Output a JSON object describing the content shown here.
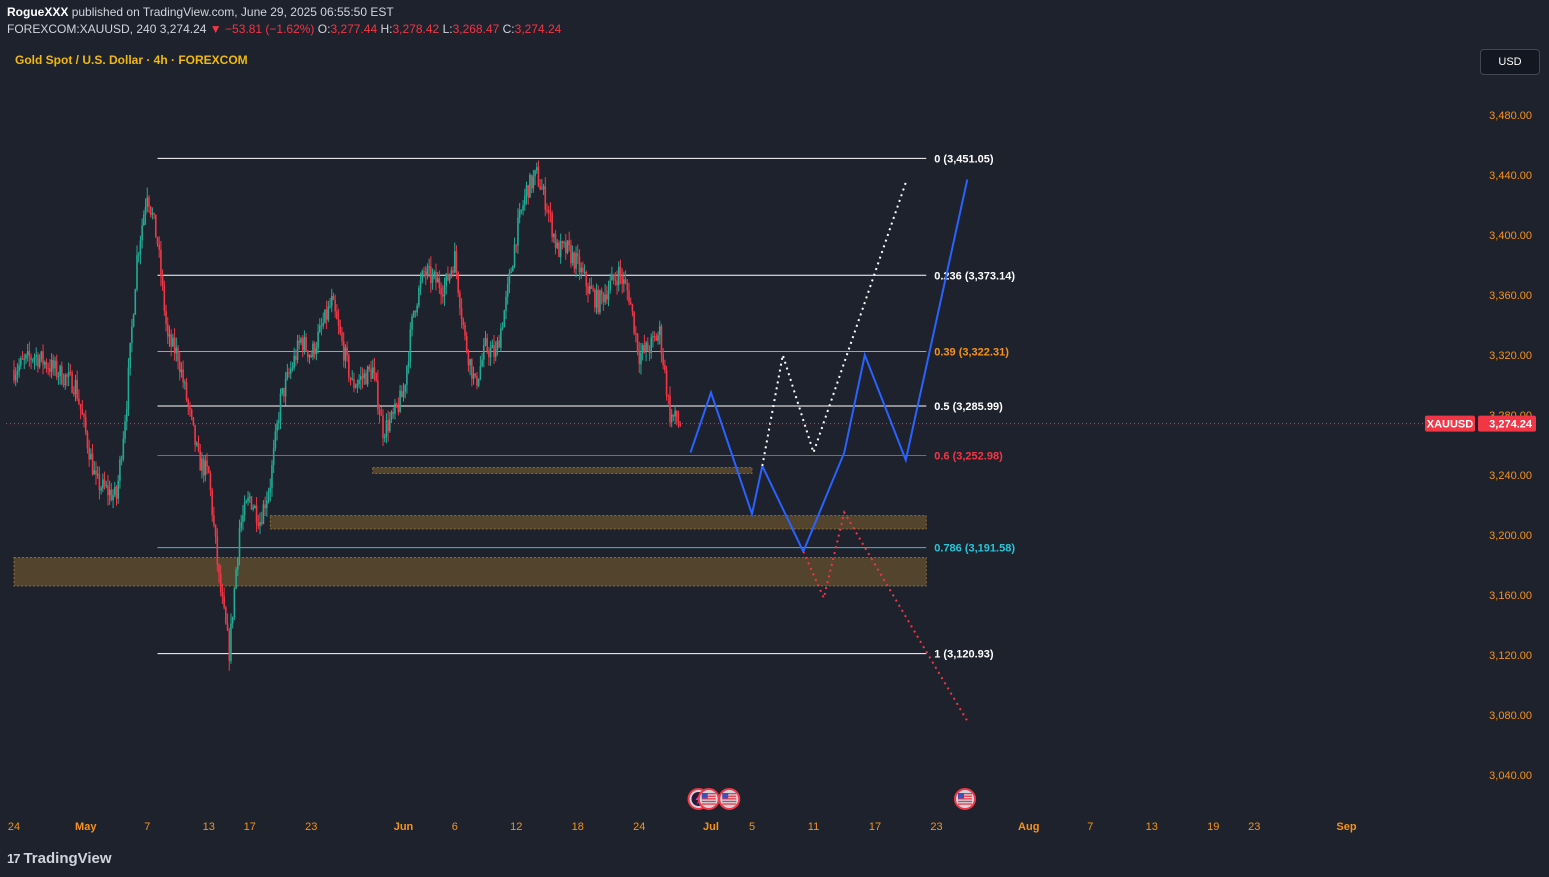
{
  "header": {
    "publisher": "RogueXXX",
    "published_text": "published on TradingView.com, June 29, 2025 06:55:50 EST",
    "symbol": "FOREXCOM:XAUUSD, 240",
    "last": "3,274.24",
    "change_arrow": "▼",
    "change": "−53.81 (−1.62%)",
    "o_label": "O:",
    "o": "3,277.44",
    "h_label": "H:",
    "h": "3,278.42",
    "l_label": "L:",
    "l": "3,268.47",
    "c_label": "C:",
    "c": "3,274.24"
  },
  "symbol_title": "Gold Spot / U.S. Dollar · 4h · FOREXCOM",
  "currency_button": "USD",
  "footer": {
    "logo_mark": "17",
    "logo_text": "TradingView"
  },
  "colors": {
    "up": "#22ab94",
    "down": "#f23645",
    "background": "#1e222d",
    "orange": "#f7931a",
    "blue_path": "#2962ff",
    "cyan_fib": "#26c6da",
    "zone_fill": "#5c4a2e",
    "text": "#d1d4dc"
  },
  "chart_data": {
    "type": "candlestick",
    "timeframe": "4h",
    "ylim": [
      3010,
      3510
    ],
    "y_ticks": [
      "3,480.00",
      "3,440.00",
      "3,400.00",
      "3,360.00",
      "3,320.00",
      "3,280.00",
      "3,240.00",
      "3,200.00",
      "3,160.00",
      "3,120.00",
      "3,080.00",
      "3,040.00"
    ],
    "y_tick_values": [
      3480,
      3440,
      3400,
      3360,
      3320,
      3280,
      3240,
      3200,
      3160,
      3120,
      3080,
      3040
    ],
    "x_ticks": [
      "24",
      "May",
      "7",
      "13",
      "17",
      "23",
      "Jun",
      "6",
      "12",
      "18",
      "24",
      "Jul",
      "5",
      "11",
      "17",
      "23",
      "Aug",
      "7",
      "13",
      "19",
      "23",
      "Sep"
    ],
    "x_tick_dates": [
      "2025-04-24",
      "2025-05-01",
      "2025-05-07",
      "2025-05-13",
      "2025-05-17",
      "2025-05-23",
      "2025-06-01",
      "2025-06-06",
      "2025-06-12",
      "2025-06-18",
      "2025-06-24",
      "2025-07-01",
      "2025-07-05",
      "2025-07-11",
      "2025-07-17",
      "2025-07-23",
      "2025-08-01",
      "2025-08-07",
      "2025-08-13",
      "2025-08-19",
      "2025-08-23",
      "2025-09-01"
    ],
    "bold_ticks": [
      "May",
      "Jun",
      "Jul",
      "Aug",
      "Sep"
    ],
    "last_price": {
      "label": "XAUUSD",
      "value": "3,274.24",
      "y": 3274.24
    },
    "price_anchors": [
      {
        "date": "2025-04-24",
        "price": 3310
      },
      {
        "date": "2025-04-26",
        "price": 3320
      },
      {
        "date": "2025-04-30",
        "price": 3300
      },
      {
        "date": "2025-05-02",
        "price": 3235
      },
      {
        "date": "2025-05-04",
        "price": 3225
      },
      {
        "date": "2025-05-05",
        "price": 3290
      },
      {
        "date": "2025-05-06",
        "price": 3385
      },
      {
        "date": "2025-05-07",
        "price": 3430
      },
      {
        "date": "2025-05-08",
        "price": 3395
      },
      {
        "date": "2025-05-09",
        "price": 3330
      },
      {
        "date": "2025-05-10",
        "price": 3320
      },
      {
        "date": "2025-05-12",
        "price": 3250
      },
      {
        "date": "2025-05-13",
        "price": 3240
      },
      {
        "date": "2025-05-14",
        "price": 3170
      },
      {
        "date": "2025-05-15",
        "price": 3122
      },
      {
        "date": "2025-05-16",
        "price": 3205
      },
      {
        "date": "2025-05-17",
        "price": 3225
      },
      {
        "date": "2025-05-18",
        "price": 3210
      },
      {
        "date": "2025-05-19",
        "price": 3235
      },
      {
        "date": "2025-05-20",
        "price": 3290
      },
      {
        "date": "2025-05-22",
        "price": 3330
      },
      {
        "date": "2025-05-23",
        "price": 3320
      },
      {
        "date": "2025-05-25",
        "price": 3355
      },
      {
        "date": "2025-05-27",
        "price": 3300
      },
      {
        "date": "2025-05-29",
        "price": 3310
      },
      {
        "date": "2025-05-30",
        "price": 3270
      },
      {
        "date": "2025-05-31",
        "price": 3278
      },
      {
        "date": "2025-06-01",
        "price": 3295
      },
      {
        "date": "2025-06-02",
        "price": 3350
      },
      {
        "date": "2025-06-03",
        "price": 3375
      },
      {
        "date": "2025-06-05",
        "price": 3365
      },
      {
        "date": "2025-06-06",
        "price": 3385
      },
      {
        "date": "2025-06-07",
        "price": 3330
      },
      {
        "date": "2025-06-08",
        "price": 3300
      },
      {
        "date": "2025-06-09",
        "price": 3325
      },
      {
        "date": "2025-06-10",
        "price": 3320
      },
      {
        "date": "2025-06-11",
        "price": 3355
      },
      {
        "date": "2025-06-12",
        "price": 3400
      },
      {
        "date": "2025-06-13",
        "price": 3430
      },
      {
        "date": "2025-06-14",
        "price": 3440
      },
      {
        "date": "2025-06-15",
        "price": 3420
      },
      {
        "date": "2025-06-16",
        "price": 3390
      },
      {
        "date": "2025-06-17",
        "price": 3390
      },
      {
        "date": "2025-06-18",
        "price": 3380
      },
      {
        "date": "2025-06-19",
        "price": 3365
      },
      {
        "date": "2025-06-20",
        "price": 3355
      },
      {
        "date": "2025-06-22",
        "price": 3375
      },
      {
        "date": "2025-06-23",
        "price": 3360
      },
      {
        "date": "2025-06-24",
        "price": 3320
      },
      {
        "date": "2025-06-25",
        "price": 3325
      },
      {
        "date": "2025-06-26",
        "price": 3335
      },
      {
        "date": "2025-06-27",
        "price": 3280
      },
      {
        "date": "2025-06-28",
        "price": 3274.24
      }
    ],
    "fibonacci": [
      {
        "ratio": "0",
        "value": 3451.05,
        "label": "0 (3,451.05)",
        "color": "#ffffff"
      },
      {
        "ratio": "0.236",
        "value": 3373.14,
        "label": "0.236 (3,373.14)",
        "color": "#ffffff"
      },
      {
        "ratio": "0.39",
        "value": 3322.31,
        "label": "0.39 (3,322.31)",
        "color": "#f7931a"
      },
      {
        "ratio": "0.5",
        "value": 3285.99,
        "label": "0.5 (3,285.99)",
        "color": "#ffffff"
      },
      {
        "ratio": "0.6",
        "value": 3252.98,
        "label": "0.6 (3,252.98)",
        "color": "#f23645"
      },
      {
        "ratio": "0.786",
        "value": 3191.58,
        "label": "0.786 (3,191.58)",
        "color": "#26c6da"
      },
      {
        "ratio": "1",
        "value": 3120.93,
        "label": "1 (3,120.93)",
        "color": "#ffffff"
      }
    ],
    "fib_range": {
      "start": "2025-05-08",
      "end": "2025-07-22"
    },
    "zones": [
      {
        "start": "2025-05-29",
        "end": "2025-07-05",
        "low": 3241,
        "high": 3245
      },
      {
        "start": "2025-05-19",
        "end": "2025-07-22",
        "low": 3204,
        "high": 3213
      },
      {
        "start": "2025-04-24",
        "end": "2025-07-22",
        "low": 3166,
        "high": 3185
      }
    ],
    "projections": [
      {
        "style": "solid",
        "color": "#2962ff",
        "points": [
          [
            "2025-06-29",
            3255
          ],
          [
            "2025-07-01",
            3295
          ],
          [
            "2025-07-05",
            3214
          ],
          [
            "2025-07-06",
            3246
          ],
          [
            "2025-07-10",
            3189
          ],
          [
            "2025-07-14",
            3255
          ],
          [
            "2025-07-16",
            3320
          ],
          [
            "2025-07-20",
            3250
          ],
          [
            "2025-07-26",
            3437
          ]
        ]
      },
      {
        "style": "dotted",
        "color": "#ffffff",
        "points": [
          [
            "2025-07-06",
            3246
          ],
          [
            "2025-07-08",
            3320
          ],
          [
            "2025-07-11",
            3255
          ],
          [
            "2025-07-20",
            3435
          ]
        ]
      },
      {
        "style": "dotted",
        "color": "#f23645",
        "points": [
          [
            "2025-07-10",
            3189
          ],
          [
            "2025-07-12",
            3158
          ],
          [
            "2025-07-14",
            3215
          ],
          [
            "2025-07-26",
            3076
          ]
        ]
      }
    ],
    "event_icons": [
      {
        "name": "lightning-event-icon",
        "date": "2025-06-29"
      },
      {
        "name": "us-flag-event-icon",
        "date": "2025-06-30"
      },
      {
        "name": "us-flag-event-icon",
        "date": "2025-07-02"
      },
      {
        "name": "us-flag-event-icon",
        "date": "2025-07-25"
      }
    ]
  }
}
